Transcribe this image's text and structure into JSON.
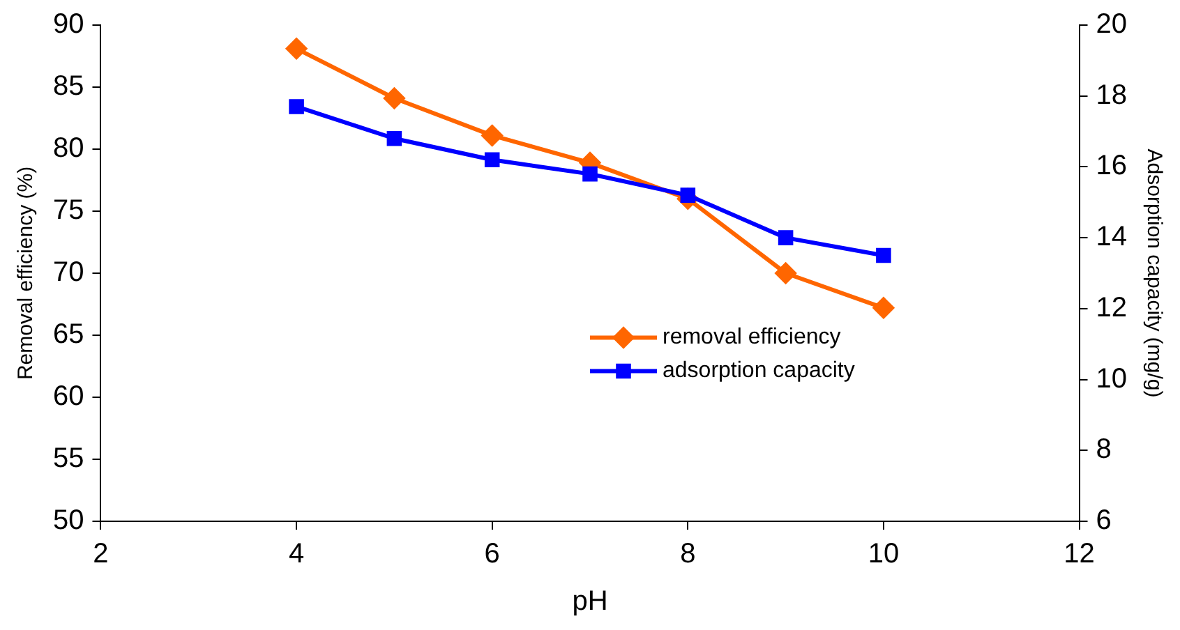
{
  "chart_data": {
    "type": "line",
    "xlabel": "pH",
    "ylabel": "Removal efficiency (%)",
    "y2label": "Adsorption capacity (mg/g)",
    "x": [
      4,
      5,
      6,
      7,
      8,
      9,
      10
    ],
    "series": [
      {
        "name": "removal efficiency",
        "color": "#ff6600",
        "marker": "diamond",
        "values": [
          88.1,
          84.1,
          81.1,
          78.9,
          76.0,
          70.0,
          67.2
        ]
      },
      {
        "name": "adsorption capacity",
        "color": "#0000ff",
        "marker": "square",
        "axis": "y2",
        "values": [
          17.7,
          16.8,
          16.2,
          15.8,
          15.2,
          14.0,
          13.5
        ]
      }
    ],
    "xlim": [
      2,
      12
    ],
    "xticks": [
      2,
      4,
      6,
      8,
      10,
      12
    ],
    "ylim": [
      50,
      90
    ],
    "yticks": [
      50,
      55,
      60,
      65,
      70,
      75,
      80,
      85,
      90
    ],
    "y2lim": [
      6,
      20
    ],
    "y2ticks": [
      6,
      8,
      10,
      12,
      14,
      16,
      18,
      20
    ],
    "grid": false,
    "legend": "right",
    "line_style": "solid"
  }
}
